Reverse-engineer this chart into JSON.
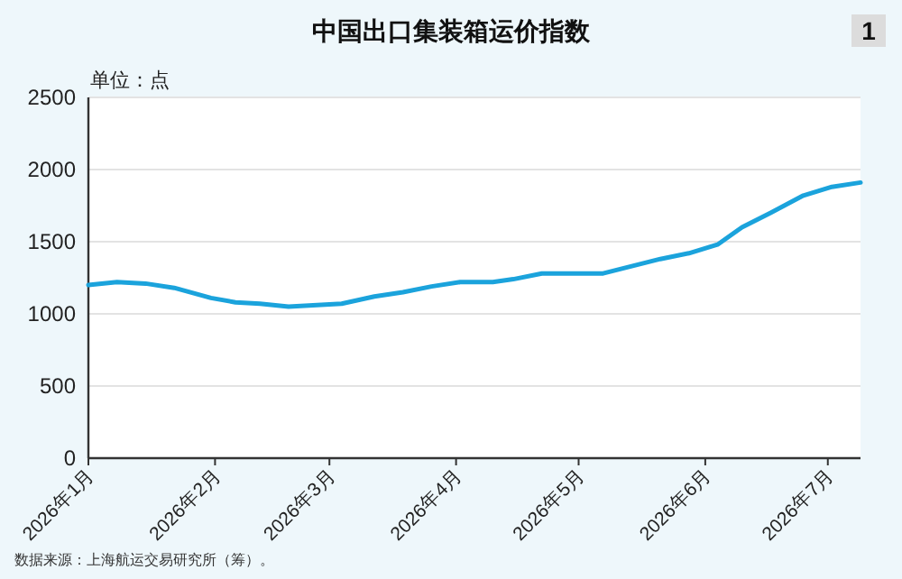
{
  "chart_data": {
    "type": "line",
    "title": "中国出口集装箱运价指数",
    "ylabel": "单位：点",
    "annotations": [
      "1",
      "数据来源：上海航运交易研究所（筹）。"
    ],
    "x": [
      "2026-01-01",
      "2026-01-08",
      "2026-01-15",
      "2026-01-22",
      "2026-01-31",
      "2026-02-06",
      "2026-02-12",
      "2026-02-19",
      "2026-02-25",
      "2026-03-04",
      "2026-03-12",
      "2026-03-19",
      "2026-03-26",
      "2026-04-02",
      "2026-04-10",
      "2026-04-15",
      "2026-04-22",
      "2026-05-07",
      "2026-05-14",
      "2026-05-21",
      "2026-05-28",
      "2026-06-04",
      "2026-06-10",
      "2026-06-17",
      "2026-06-25",
      "2026-07-02",
      "2026-07-09"
    ],
    "series": [
      {
        "color": "#1ba3dc",
        "values": [
          1200,
          1220,
          1210,
          1180,
          1110,
          1080,
          1070,
          1050,
          1060,
          1070,
          1120,
          1150,
          1190,
          1220,
          1220,
          1240,
          1280,
          1280,
          1330,
          1380,
          1420,
          1480,
          1600,
          1700,
          1820,
          1880,
          1910
        ]
      }
    ],
    "xlim": [
      "2026-01-01",
      "2026-07-09"
    ],
    "xticks": [
      {
        "value": "2026-01-01",
        "label": "2026年1月"
      },
      {
        "value": "2026-02-01",
        "label": "2026年2月"
      },
      {
        "value": "2026-03-01",
        "label": "2026年3月"
      },
      {
        "value": "2026-04-01",
        "label": "2026年4月"
      },
      {
        "value": "2026-05-01",
        "label": "2026年5月"
      },
      {
        "value": "2026-06-01",
        "label": "2026年6月"
      },
      {
        "value": "2026-07-01",
        "label": "2026年7月"
      }
    ],
    "ylim": [
      0,
      2500
    ],
    "yticks": [
      0,
      500,
      1000,
      1500,
      2000,
      2500
    ],
    "grid": "y",
    "marker": "none",
    "line_style": "solid"
  }
}
